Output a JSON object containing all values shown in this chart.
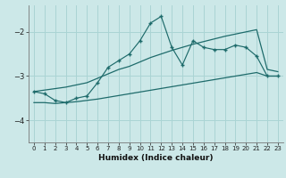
{
  "xlabel": "Humidex (Indice chaleur)",
  "bg_color": "#cce8e8",
  "line_color": "#1e6b6b",
  "grid_color": "#aad4d4",
  "xlim": [
    -0.5,
    23.5
  ],
  "ylim": [
    -4.5,
    -1.4
  ],
  "yticks": [
    -4,
    -3,
    -2
  ],
  "xticks": [
    0,
    1,
    2,
    3,
    4,
    5,
    6,
    7,
    8,
    9,
    10,
    11,
    12,
    13,
    14,
    15,
    16,
    17,
    18,
    19,
    20,
    21,
    22,
    23
  ],
  "line1_x": [
    0,
    1,
    2,
    3,
    4,
    5,
    6,
    7,
    8,
    9,
    10,
    11,
    12,
    13,
    14,
    15,
    16,
    17,
    18,
    19,
    20,
    21,
    22,
    23
  ],
  "line1_y": [
    -3.35,
    -3.4,
    -3.55,
    -3.6,
    -3.5,
    -3.45,
    -3.15,
    -2.8,
    -2.65,
    -2.5,
    -2.2,
    -1.8,
    -1.65,
    -2.35,
    -2.75,
    -2.2,
    -2.35,
    -2.4,
    -2.4,
    -2.3,
    -2.35,
    -2.55,
    -3.0,
    -3.0
  ],
  "line2_x": [
    0,
    3,
    4,
    5,
    6,
    7,
    8,
    9,
    10,
    11,
    12,
    13,
    14,
    15,
    16,
    17,
    18,
    19,
    20,
    21,
    22,
    23
  ],
  "line2_y": [
    -3.35,
    -3.25,
    -3.2,
    -3.15,
    -3.05,
    -2.95,
    -2.85,
    -2.78,
    -2.68,
    -2.58,
    -2.5,
    -2.42,
    -2.35,
    -2.28,
    -2.22,
    -2.16,
    -2.1,
    -2.05,
    -2.0,
    -1.95,
    -2.85,
    -2.9
  ],
  "line3_x": [
    0,
    1,
    2,
    3,
    4,
    5,
    6,
    7,
    8,
    9,
    10,
    11,
    12,
    13,
    14,
    15,
    16,
    17,
    18,
    19,
    20,
    21,
    22,
    23
  ],
  "line3_y": [
    -3.6,
    -3.6,
    -3.62,
    -3.6,
    -3.58,
    -3.55,
    -3.52,
    -3.48,
    -3.44,
    -3.4,
    -3.36,
    -3.32,
    -3.28,
    -3.24,
    -3.2,
    -3.16,
    -3.12,
    -3.08,
    -3.04,
    -3.0,
    -2.96,
    -2.92,
    -3.0,
    -3.0
  ]
}
